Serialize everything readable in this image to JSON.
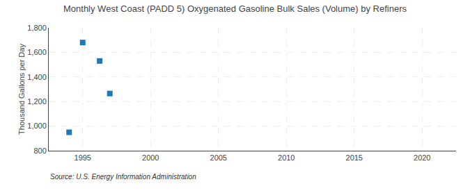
{
  "chart_data": {
    "type": "scatter",
    "title": "Monthly West Coast (PADD 5) Oxygenated Gasoline Bulk Sales (Volume) by Refiners",
    "ylabel": "Thousand Gallons per Day",
    "annotations": [
      "Source: U.S. Energy Information Administration"
    ],
    "x": [
      1994,
      1995,
      1996.25,
      1997
    ],
    "values": [
      950,
      1680,
      1530,
      1265
    ],
    "marker": "square",
    "xlim": [
      1992.5,
      2022.5
    ],
    "ylim": [
      800,
      1800
    ],
    "xticks": [
      1995,
      2000,
      2005,
      2010,
      2015,
      2020
    ],
    "yticks": [
      800,
      {
        "value": 1000,
        "label": "1,000"
      },
      {
        "value": 1200,
        "label": "1,200"
      },
      {
        "value": 1400,
        "label": "1,400"
      },
      {
        "value": 1600,
        "label": "1,600"
      },
      {
        "value": 1800,
        "label": "1,800"
      }
    ],
    "grid": true
  }
}
